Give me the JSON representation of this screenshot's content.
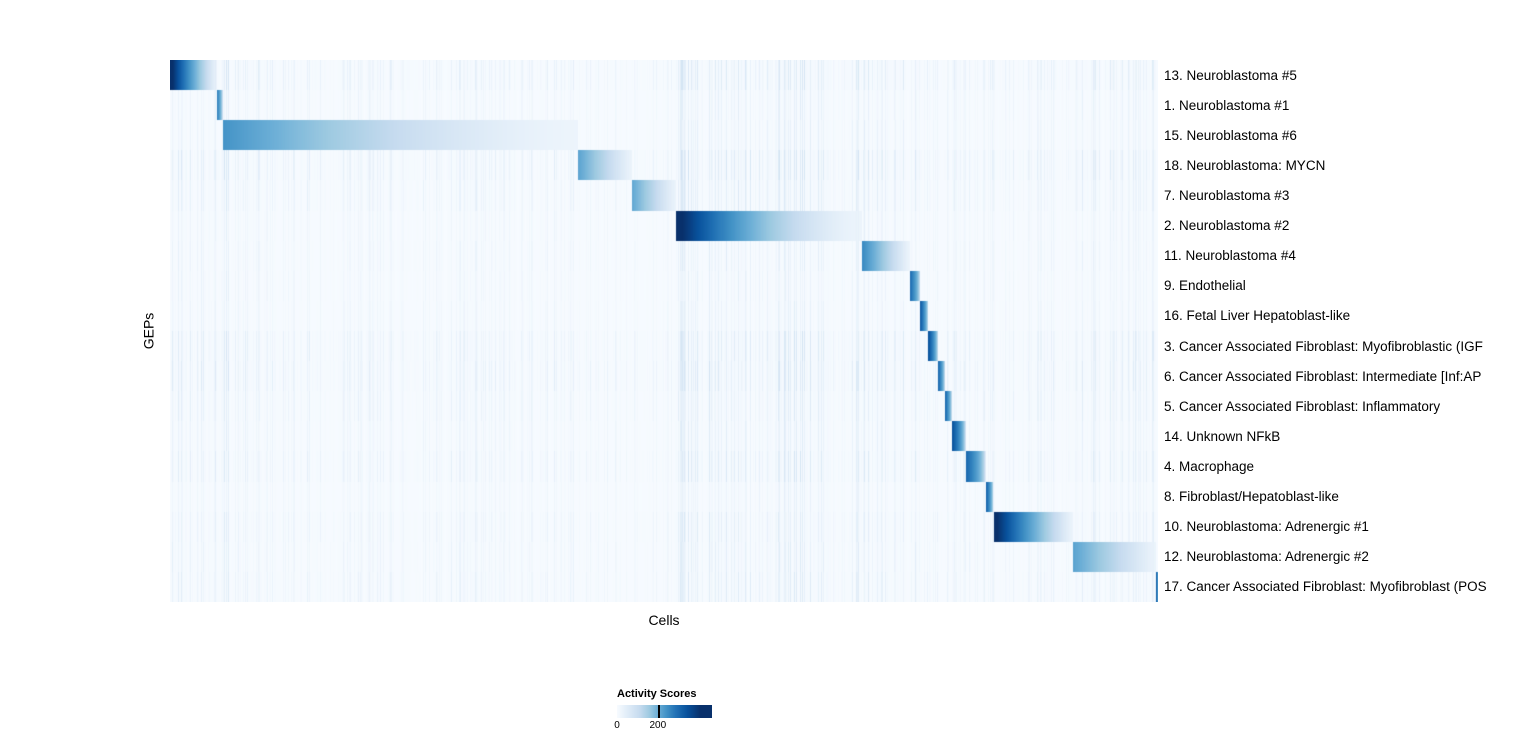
{
  "figure": {
    "x_axis_label": "Cells",
    "y_axis_label": "GEPs"
  },
  "legend": {
    "title": "Activity Scores",
    "ticks": [
      {
        "label": "0",
        "pos": 0.0
      },
      {
        "label": "200",
        "pos": 0.43
      }
    ]
  },
  "colors": {
    "background": "#ffffff",
    "colormap": "Blues",
    "colormap_low": "#f7fbff",
    "colormap_high": "#08306b",
    "label_text": "#000000"
  },
  "chart_data": {
    "type": "heatmap",
    "title": "",
    "xlabel": "Cells",
    "ylabel": "GEPs",
    "legend_title": "Activity Scores",
    "legend_position": "bottom",
    "color_scale": {
      "name": "Blues",
      "min": 0,
      "max": 460,
      "legend_tick_values": [
        0,
        200
      ]
    },
    "structure": "block-diagonal",
    "rows": [
      {
        "label": "13. Neuroblastoma #5",
        "block_start": 0.0,
        "block_end": 0.047,
        "peak": 460
      },
      {
        "label": "1. Neuroblastoma #1",
        "block_start": 0.047,
        "block_end": 0.053,
        "peak": 300
      },
      {
        "label": "15. Neuroblastoma #6",
        "block_start": 0.053,
        "block_end": 0.412,
        "peak": 260
      },
      {
        "label": "18. Neuroblastoma: MYCN",
        "block_start": 0.412,
        "block_end": 0.467,
        "peak": 230
      },
      {
        "label": "7. Neuroblastoma #3",
        "block_start": 0.467,
        "block_end": 0.512,
        "peak": 220
      },
      {
        "label": "2. Neuroblastoma #2",
        "block_start": 0.512,
        "block_end": 0.7,
        "peak": 460
      },
      {
        "label": "11. Neuroblastoma #4",
        "block_start": 0.7,
        "block_end": 0.748,
        "peak": 280
      },
      {
        "label": "9. Endothelial",
        "block_start": 0.748,
        "block_end": 0.759,
        "peak": 340
      },
      {
        "label": "16. Fetal Liver Hepatoblast-like",
        "block_start": 0.759,
        "block_end": 0.767,
        "peak": 360
      },
      {
        "label": "3. Cancer Associated Fibroblast: Myofibroblastic (IGF",
        "block_start": 0.767,
        "block_end": 0.777,
        "peak": 380
      },
      {
        "label": "6. Cancer Associated Fibroblast: Intermediate [Inf:AP",
        "block_start": 0.777,
        "block_end": 0.784,
        "peak": 340
      },
      {
        "label": "5. Cancer Associated Fibroblast: Inflammatory",
        "block_start": 0.784,
        "block_end": 0.791,
        "peak": 340
      },
      {
        "label": "14. Unknown NFkB",
        "block_start": 0.791,
        "block_end": 0.805,
        "peak": 380
      },
      {
        "label": "4. Macrophage",
        "block_start": 0.805,
        "block_end": 0.825,
        "peak": 340
      },
      {
        "label": "8. Fibroblast/Hepatoblast-like",
        "block_start": 0.825,
        "block_end": 0.833,
        "peak": 360
      },
      {
        "label": "10. Neuroblastoma: Adrenergic #1",
        "block_start": 0.833,
        "block_end": 0.913,
        "peak": 460
      },
      {
        "label": "12. Neuroblastoma: Adrenergic #2",
        "block_start": 0.913,
        "block_end": 0.997,
        "peak": 230
      },
      {
        "label": "17. Cancer Associated Fibroblast: Myofibroblast (POS",
        "block_start": 0.997,
        "block_end": 1.0,
        "peak": 420
      }
    ]
  }
}
